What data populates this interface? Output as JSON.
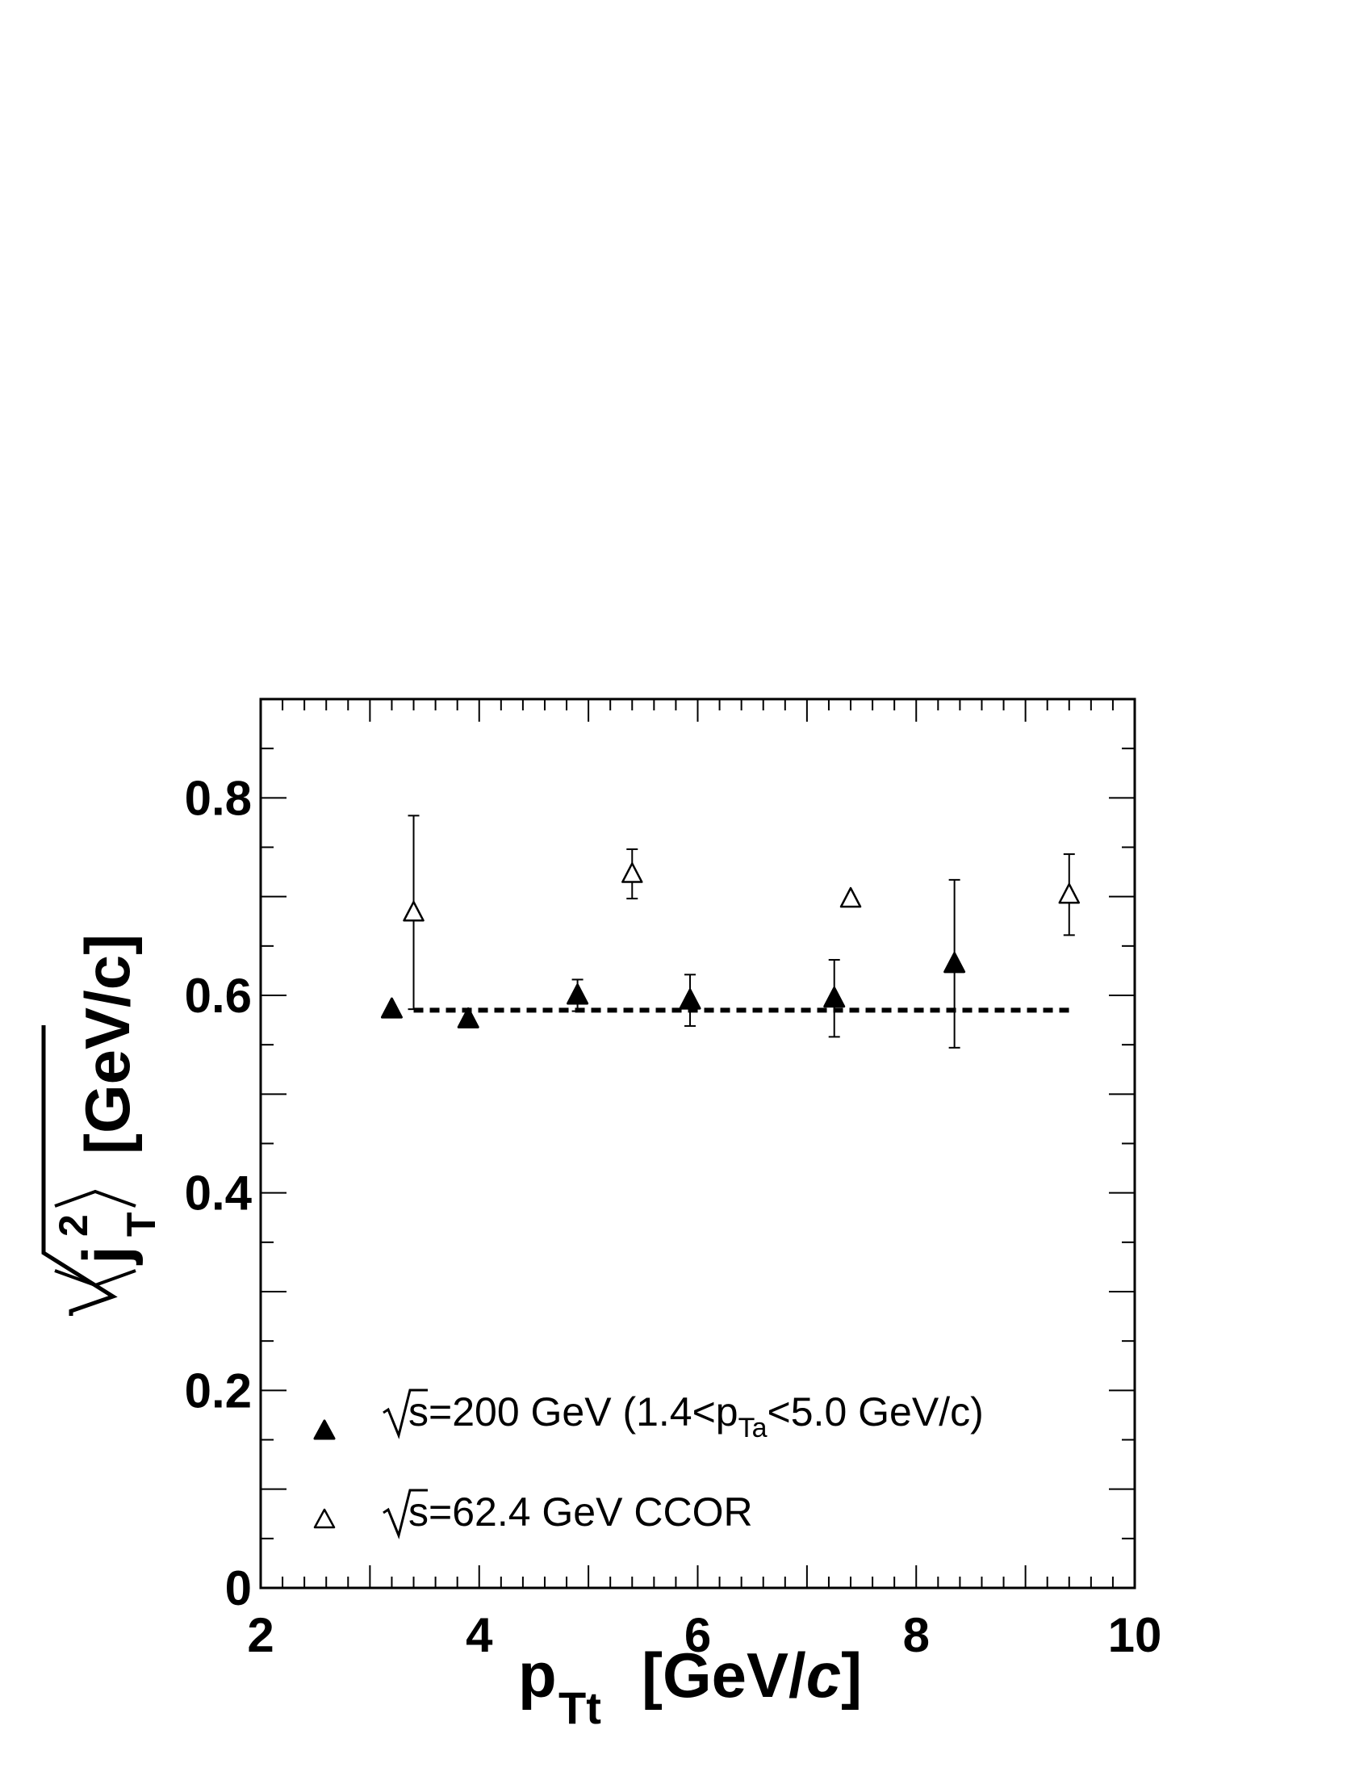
{
  "chart_data": {
    "type": "scatter",
    "xlim": [
      2,
      10
    ],
    "ylim": [
      0,
      0.9
    ],
    "x_ticks": [
      "2",
      "4",
      "6",
      "8",
      "10"
    ],
    "y_ticks": [
      "0",
      "0.2",
      "0.4",
      "0.6",
      "0.8"
    ],
    "xlabel": {
      "main": "p",
      "sub": "Tt",
      "units_pre": "[GeV/",
      "units_italic": "c",
      "units_post": "]"
    },
    "ylabel": {
      "j": "j",
      "sup": "2",
      "sub": "T",
      "units": "[GeV/c]"
    },
    "grid": false,
    "legend_position": "bottom-left",
    "series": [
      {
        "name": "√s=200 GeV (1.4<pTa<5.0 GeV/c)",
        "label_parts": {
          "root": "s",
          "eq": "=200 GeV (1.4<p",
          "sub": "Ta",
          "rest": "<5.0 GeV/c)"
        },
        "marker": "filled-triangle",
        "color": "#000000",
        "points": [
          {
            "x": 3.2,
            "y": 0.586,
            "err": 0.0
          },
          {
            "x": 3.9,
            "y": 0.576,
            "err": 0.0
          },
          {
            "x": 4.9,
            "y": 0.6,
            "err": 0.016
          },
          {
            "x": 5.93,
            "y": 0.595,
            "err": 0.026
          },
          {
            "x": 7.25,
            "y": 0.597,
            "err": 0.039
          },
          {
            "x": 8.35,
            "y": 0.632,
            "err": 0.085
          }
        ]
      },
      {
        "name": "√s=62.4 GeV CCOR",
        "label_parts": {
          "root": "s",
          "eq": "=62.4 GeV CCOR"
        },
        "marker": "open-triangle",
        "color": "#000000",
        "points": [
          {
            "x": 3.4,
            "y": 0.684,
            "err": 0.098
          },
          {
            "x": 5.4,
            "y": 0.723,
            "err": 0.025
          },
          {
            "x": 7.4,
            "y": 0.698,
            "err": 0.0
          },
          {
            "x": 9.4,
            "y": 0.702,
            "err": 0.041
          }
        ]
      }
    ],
    "fit_line": {
      "x_start": 3.4,
      "x_end": 9.45,
      "y": 0.585,
      "style": "dotted"
    }
  }
}
